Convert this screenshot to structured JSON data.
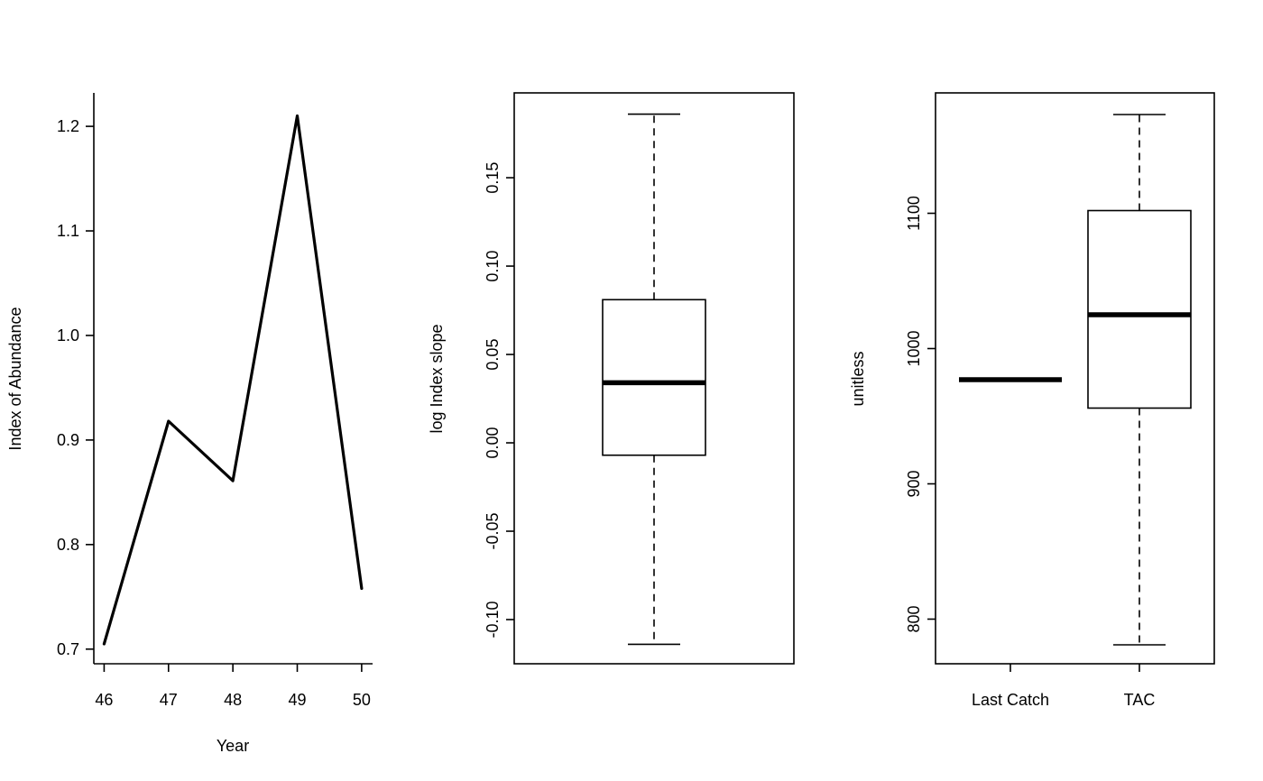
{
  "chart_data": [
    {
      "type": "line",
      "xlabel": "Year",
      "ylabel": "Index of Abundance",
      "x": [
        46,
        47,
        48,
        49,
        50
      ],
      "series": [
        {
          "values": [
            0.705,
            0.918,
            0.861,
            1.21,
            0.758
          ]
        }
      ],
      "xticks": [
        "46",
        "47",
        "48",
        "49",
        "50"
      ],
      "yticks": [
        "0.7",
        "0.8",
        "0.9",
        "1.0",
        "1.1",
        "1.2"
      ],
      "xlim": [
        45.84,
        50.17
      ],
      "ylim": [
        0.686,
        1.232
      ],
      "grid": false
    },
    {
      "type": "boxplot",
      "ylabel": "log Index slope",
      "boxes": [
        {
          "min": -0.114,
          "q1": -0.007,
          "median": 0.034,
          "q3": 0.081,
          "max": 0.186
        }
      ],
      "yticks": [
        "-0.10",
        "-0.05",
        "0.00",
        "0.05",
        "0.10",
        "0.15"
      ],
      "ylim": [
        -0.125,
        0.198
      ],
      "grid": false
    },
    {
      "type": "boxplot",
      "ylabel": "unitless",
      "categories": [
        "Last Catch",
        "TAC"
      ],
      "boxes": [
        {
          "min": 977,
          "q1": 977,
          "median": 977,
          "q3": 977,
          "max": 977
        },
        {
          "min": 781,
          "q1": 956,
          "median": 1025,
          "q3": 1102,
          "max": 1173
        }
      ],
      "yticks": [
        "800",
        "900",
        "1000",
        "1100"
      ],
      "ylim": [
        767,
        1189
      ],
      "grid": false
    }
  ]
}
